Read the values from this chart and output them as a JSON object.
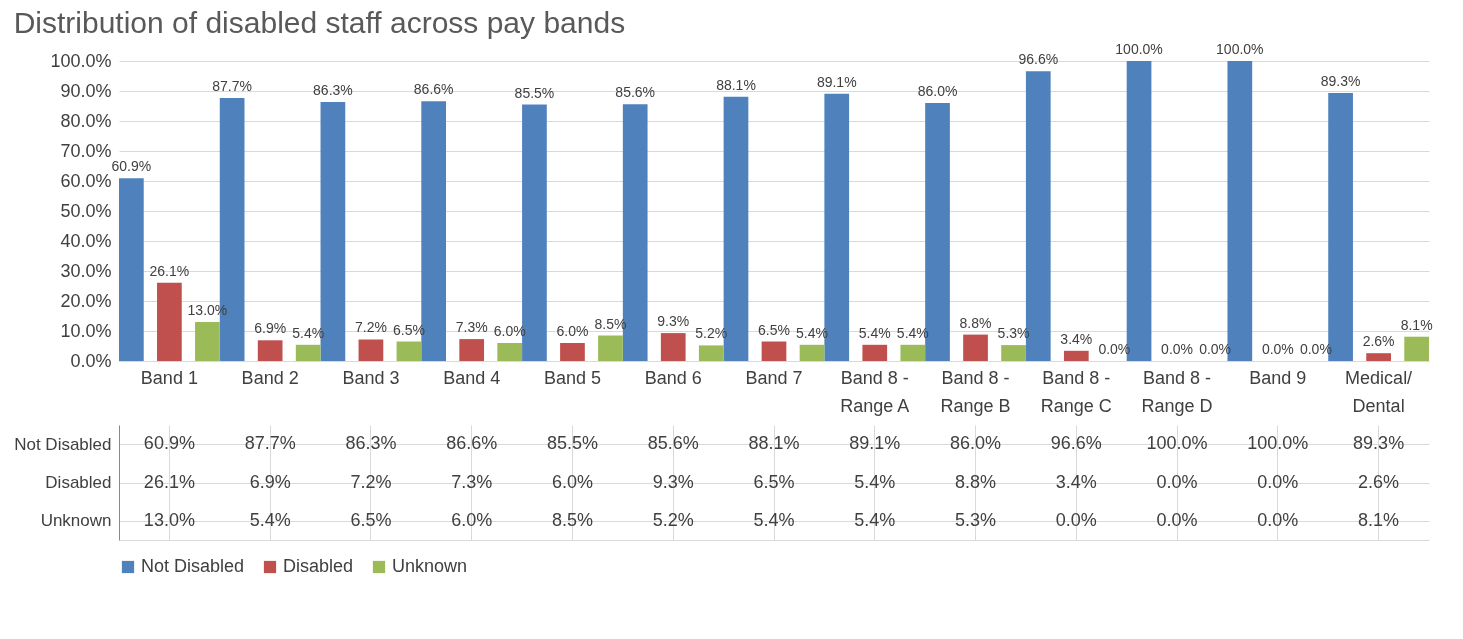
{
  "chart_data": {
    "type": "bar",
    "title": "Distribution of disabled staff across pay bands",
    "categories": [
      "Band 1",
      "Band 2",
      "Band 3",
      "Band 4",
      "Band 5",
      "Band 6",
      "Band 7",
      "Band 8 - Range A",
      "Band 8 - Range B",
      "Band 8 - Range C",
      "Band 8 - Range D",
      "Band 9",
      "Medical/Dental"
    ],
    "series": [
      {
        "name": "Not Disabled",
        "color": "#4f81bd",
        "values": [
          60.9,
          87.7,
          86.3,
          86.6,
          85.5,
          85.6,
          88.1,
          89.1,
          86.0,
          96.6,
          100.0,
          100.0,
          89.3
        ],
        "value_labels": [
          "60.9%",
          "87.7%",
          "86.3%",
          "86.6%",
          "85.5%",
          "85.6%",
          "88.1%",
          "89.1%",
          "86.0%",
          "96.6%",
          "100.0%",
          "100.0%",
          "89.3%"
        ]
      },
      {
        "name": "Disabled",
        "color": "#c0504d",
        "values": [
          26.1,
          6.9,
          7.2,
          7.3,
          6.0,
          9.3,
          6.5,
          5.4,
          8.8,
          3.4,
          0.0,
          0.0,
          2.6
        ],
        "value_labels": [
          "26.1%",
          "6.9%",
          "7.2%",
          "7.3%",
          "6.0%",
          "9.3%",
          "6.5%",
          "5.4%",
          "8.8%",
          "3.4%",
          "0.0%",
          "0.0%",
          "2.6%"
        ]
      },
      {
        "name": "Unknown",
        "color": "#9bbb59",
        "values": [
          13.0,
          5.4,
          6.5,
          6.0,
          8.5,
          5.2,
          5.4,
          5.4,
          5.3,
          0.0,
          0.0,
          0.0,
          8.1
        ],
        "value_labels": [
          "13.0%",
          "5.4%",
          "6.5%",
          "6.0%",
          "8.5%",
          "5.2%",
          "5.4%",
          "5.4%",
          "5.3%",
          "0.0%",
          "0.0%",
          "0.0%",
          "8.1%"
        ]
      }
    ],
    "ylim": [
      0,
      100
    ],
    "yticks": [
      {
        "value": 0,
        "label": "0.0%"
      },
      {
        "value": 10,
        "label": "10.0%"
      },
      {
        "value": 20,
        "label": "20.0%"
      },
      {
        "value": 30,
        "label": "30.0%"
      },
      {
        "value": 40,
        "label": "40.0%"
      },
      {
        "value": 50,
        "label": "50.0%"
      },
      {
        "value": 60,
        "label": "60.0%"
      },
      {
        "value": 70,
        "label": "70.0%"
      },
      {
        "value": 80,
        "label": "80.0%"
      },
      {
        "value": 90,
        "label": "90.0%"
      },
      {
        "value": 100,
        "label": "100.0%"
      }
    ],
    "grid": "y",
    "legend": "bottom"
  }
}
